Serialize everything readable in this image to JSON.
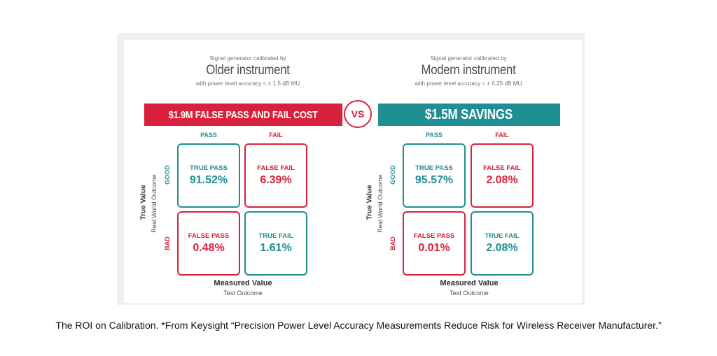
{
  "left": {
    "header_small": "Signal generator calibrated by",
    "header_title": "Older instrument",
    "header_accuracy": "with power level accuracy < ± 1.5 dB MU",
    "banner": "$1.9M FALSE PASS AND FAIL COST",
    "col_pass": "PASS",
    "col_fail": "FAIL",
    "row_good": "GOOD",
    "row_bad": "BAD",
    "axis_title": "True Value",
    "axis_sub": "Real World Outcome",
    "cells": {
      "true_pass": {
        "title": "TRUE PASS",
        "value": "91.52%"
      },
      "false_fail": {
        "title": "FALSE FAIL",
        "value": "6.39%"
      },
      "false_pass": {
        "title": "FALSE PASS",
        "value": "0.48%"
      },
      "true_fail": {
        "title": "TRUE FAIL",
        "value": "1.61%"
      }
    },
    "measured_title": "Measured Value",
    "measured_sub": "Test Outcome"
  },
  "right": {
    "header_small": "Signal generator calibrated by",
    "header_title": "Modern instrument",
    "header_accuracy": "with power level accuracy < ± 0.25 dB MU",
    "banner": "$1.5M SAVINGS",
    "col_pass": "PASS",
    "col_fail": "FAIL",
    "row_good": "GOOD",
    "row_bad": "BAD",
    "axis_title": "True Value",
    "axis_sub": "Real World Outcome",
    "cells": {
      "true_pass": {
        "title": "TRUE PASS",
        "value": "95.57%"
      },
      "false_fail": {
        "title": "FALSE FAIL",
        "value": "2.08%"
      },
      "false_pass": {
        "title": "FALSE PASS",
        "value": "0.01%"
      },
      "true_fail": {
        "title": "TRUE FAIL",
        "value": "2.08%"
      }
    },
    "measured_title": "Measured Value",
    "measured_sub": "Test Outcome"
  },
  "vs_label": "VS",
  "caption": "The ROI on Calibration. *From Keysight “Precision Power Level Accuracy Measurements Reduce Risk for Wireless Receiver Manufacturer.”",
  "colors": {
    "red": "#d8213d",
    "teal": "#1f8f93",
    "frame": "#eef1f4"
  }
}
